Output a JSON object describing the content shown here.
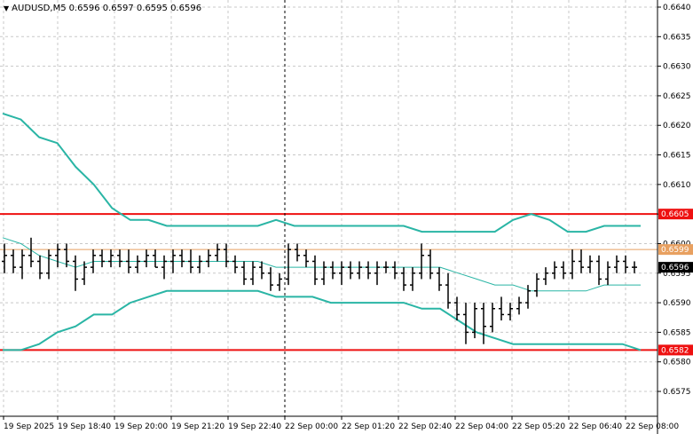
{
  "header": {
    "symbol_timeframe": "AUDUSD,M5",
    "ohlc": "0.6596 0.6597 0.6595 0.6596"
  },
  "colors": {
    "grid": "#c8c8c8",
    "bands": "#2ab5a5",
    "level": "#ee1010",
    "price_line": "#e8a060",
    "bar": "#000000"
  },
  "chart_data": {
    "type": "ohlc-bars",
    "symbol": "AUDUSD",
    "timeframe": "M5",
    "ylim": [
      0.65708,
      0.66412
    ],
    "y_ticks": [
      "0.6640",
      "0.6635",
      "0.6630",
      "0.6625",
      "0.6620",
      "0.6615",
      "0.6610",
      "0.6605",
      "0.6600",
      "0.6595",
      "0.6590",
      "0.6585",
      "0.6580",
      "0.6575"
    ],
    "x_ticks": [
      "19 Sep 2025",
      "19 Sep 18:40",
      "19 Sep 20:00",
      "19 Sep 21:20",
      "19 Sep 22:40",
      "22 Sep 00:00",
      "22 Sep 01:20",
      "22 Sep 02:40",
      "22 Sep 04:00",
      "22 Sep 05:20",
      "22 Sep 06:40",
      "22 Sep 08:00"
    ],
    "session_separator": "22 Sep 00:00",
    "levels": [
      {
        "value": 0.6605,
        "label": "0.6605"
      },
      {
        "value": 0.6582,
        "label": "0.6582"
      }
    ],
    "price_line": {
      "value": 0.6599,
      "label": "0.6599"
    },
    "current_price": {
      "value": 0.6596,
      "label": "0.6596"
    },
    "bollinger": {
      "upper": [
        0.6622,
        0.6621,
        0.6618,
        0.6617,
        0.6613,
        0.661,
        0.6606,
        0.6604,
        0.6604,
        0.6603,
        0.6603,
        0.6603,
        0.6603,
        0.6603,
        0.6603,
        0.6604,
        0.6603,
        0.6603,
        0.6603,
        0.6603,
        0.6603,
        0.6603,
        0.6603,
        0.6602,
        0.6602,
        0.6602,
        0.6602,
        0.6602,
        0.6604,
        0.6605,
        0.6604,
        0.6602,
        0.6602,
        0.6603,
        0.6603,
        0.6603
      ],
      "middle": [
        0.6601,
        0.66,
        0.6598,
        0.6597,
        0.6596,
        0.6597,
        0.6597,
        0.6597,
        0.6597,
        0.6597,
        0.6597,
        0.6597,
        0.6597,
        0.6597,
        0.6597,
        0.6596,
        0.6596,
        0.6596,
        0.6596,
        0.6596,
        0.6596,
        0.6596,
        0.6596,
        0.6596,
        0.6596,
        0.6595,
        0.6594,
        0.6593,
        0.6593,
        0.6592,
        0.6592,
        0.6592,
        0.6592,
        0.6593,
        0.6593,
        0.6593
      ],
      "lower": [
        0.6582,
        0.6582,
        0.6583,
        0.6585,
        0.6586,
        0.6588,
        0.6588,
        0.659,
        0.6591,
        0.6592,
        0.6592,
        0.6592,
        0.6592,
        0.6592,
        0.6592,
        0.6591,
        0.6591,
        0.6591,
        0.659,
        0.659,
        0.659,
        0.659,
        0.659,
        0.6589,
        0.6589,
        0.6587,
        0.6585,
        0.6584,
        0.6583,
        0.6583,
        0.6583,
        0.6583,
        0.6583,
        0.6583,
        0.6583,
        0.6582
      ]
    },
    "ohlc": [
      [
        0.6597,
        0.66,
        0.6595,
        0.6598
      ],
      [
        0.6598,
        0.6599,
        0.6595,
        0.6596
      ],
      [
        0.6596,
        0.6599,
        0.6594,
        0.6598
      ],
      [
        0.6598,
        0.6601,
        0.6596,
        0.6597
      ],
      [
        0.6597,
        0.6598,
        0.6594,
        0.6595
      ],
      [
        0.6595,
        0.6599,
        0.6594,
        0.6598
      ],
      [
        0.6598,
        0.66,
        0.6596,
        0.6599
      ],
      [
        0.6599,
        0.66,
        0.6596,
        0.6597
      ],
      [
        0.6597,
        0.6598,
        0.6592,
        0.6594
      ],
      [
        0.6594,
        0.6597,
        0.6593,
        0.6596
      ],
      [
        0.6596,
        0.6599,
        0.6595,
        0.6598
      ],
      [
        0.6598,
        0.6599,
        0.6596,
        0.6597
      ],
      [
        0.6597,
        0.6599,
        0.6596,
        0.6598
      ],
      [
        0.6598,
        0.6599,
        0.6596,
        0.6597
      ],
      [
        0.6597,
        0.6599,
        0.6595,
        0.6596
      ],
      [
        0.6596,
        0.6598,
        0.6595,
        0.6597
      ],
      [
        0.6597,
        0.6599,
        0.6596,
        0.6598
      ],
      [
        0.6598,
        0.6599,
        0.6596,
        0.6596
      ],
      [
        0.6596,
        0.6598,
        0.6594,
        0.6597
      ],
      [
        0.6597,
        0.6599,
        0.6595,
        0.6598
      ],
      [
        0.6598,
        0.6599,
        0.6596,
        0.6597
      ],
      [
        0.6597,
        0.6599,
        0.6595,
        0.6596
      ],
      [
        0.6596,
        0.6598,
        0.6595,
        0.6597
      ],
      [
        0.6597,
        0.6599,
        0.6596,
        0.6598
      ],
      [
        0.6598,
        0.66,
        0.6597,
        0.6599
      ],
      [
        0.6599,
        0.66,
        0.6596,
        0.6597
      ],
      [
        0.6597,
        0.6598,
        0.6595,
        0.6596
      ],
      [
        0.6596,
        0.6597,
        0.6593,
        0.6594
      ],
      [
        0.6594,
        0.6597,
        0.6593,
        0.6596
      ],
      [
        0.6596,
        0.6597,
        0.6594,
        0.6595
      ],
      [
        0.6595,
        0.6596,
        0.6592,
        0.6593
      ],
      [
        0.6593,
        0.6595,
        0.6592,
        0.6594
      ],
      [
        0.6594,
        0.66,
        0.6593,
        0.6599
      ],
      [
        0.6599,
        0.66,
        0.6597,
        0.6598
      ],
      [
        0.6598,
        0.6599,
        0.6596,
        0.6597
      ],
      [
        0.6597,
        0.6598,
        0.6593,
        0.6594
      ],
      [
        0.6594,
        0.6597,
        0.6593,
        0.6596
      ],
      [
        0.6596,
        0.6597,
        0.6594,
        0.6595
      ],
      [
        0.6595,
        0.6597,
        0.6593,
        0.6596
      ],
      [
        0.6596,
        0.6597,
        0.6594,
        0.6595
      ],
      [
        0.6595,
        0.6597,
        0.6594,
        0.6596
      ],
      [
        0.6596,
        0.6597,
        0.6594,
        0.6595
      ],
      [
        0.6595,
        0.6597,
        0.6593,
        0.6596
      ],
      [
        0.6596,
        0.6597,
        0.6595,
        0.6596
      ],
      [
        0.6596,
        0.6597,
        0.6594,
        0.6595
      ],
      [
        0.6595,
        0.6596,
        0.6592,
        0.6593
      ],
      [
        0.6593,
        0.6596,
        0.6592,
        0.6595
      ],
      [
        0.6595,
        0.66,
        0.6594,
        0.6598
      ],
      [
        0.6598,
        0.6599,
        0.6594,
        0.6595
      ],
      [
        0.6595,
        0.6596,
        0.6592,
        0.6593
      ],
      [
        0.6593,
        0.6595,
        0.6589,
        0.659
      ],
      [
        0.659,
        0.6591,
        0.6587,
        0.6588
      ],
      [
        0.6588,
        0.659,
        0.6583,
        0.6585
      ],
      [
        0.6585,
        0.659,
        0.6584,
        0.6589
      ],
      [
        0.6589,
        0.659,
        0.6583,
        0.6586
      ],
      [
        0.6586,
        0.659,
        0.6585,
        0.6589
      ],
      [
        0.6589,
        0.6591,
        0.6587,
        0.6588
      ],
      [
        0.6588,
        0.659,
        0.6587,
        0.6589
      ],
      [
        0.6589,
        0.6591,
        0.6588,
        0.659
      ],
      [
        0.659,
        0.6593,
        0.6589,
        0.6592
      ],
      [
        0.6592,
        0.6595,
        0.6591,
        0.6594
      ],
      [
        0.6594,
        0.6596,
        0.6593,
        0.6595
      ],
      [
        0.6595,
        0.6597,
        0.6594,
        0.6596
      ],
      [
        0.6596,
        0.6597,
        0.6594,
        0.6595
      ],
      [
        0.6595,
        0.6599,
        0.6594,
        0.6597
      ],
      [
        0.6597,
        0.6599,
        0.6595,
        0.6596
      ],
      [
        0.6596,
        0.6598,
        0.6595,
        0.6597
      ],
      [
        0.6597,
        0.6598,
        0.6593,
        0.6594
      ],
      [
        0.6594,
        0.6597,
        0.6593,
        0.6596
      ],
      [
        0.6596,
        0.6598,
        0.6595,
        0.6597
      ],
      [
        0.6597,
        0.6598,
        0.6595,
        0.6596
      ],
      [
        0.6596,
        0.6597,
        0.6595,
        0.6596
      ]
    ]
  }
}
